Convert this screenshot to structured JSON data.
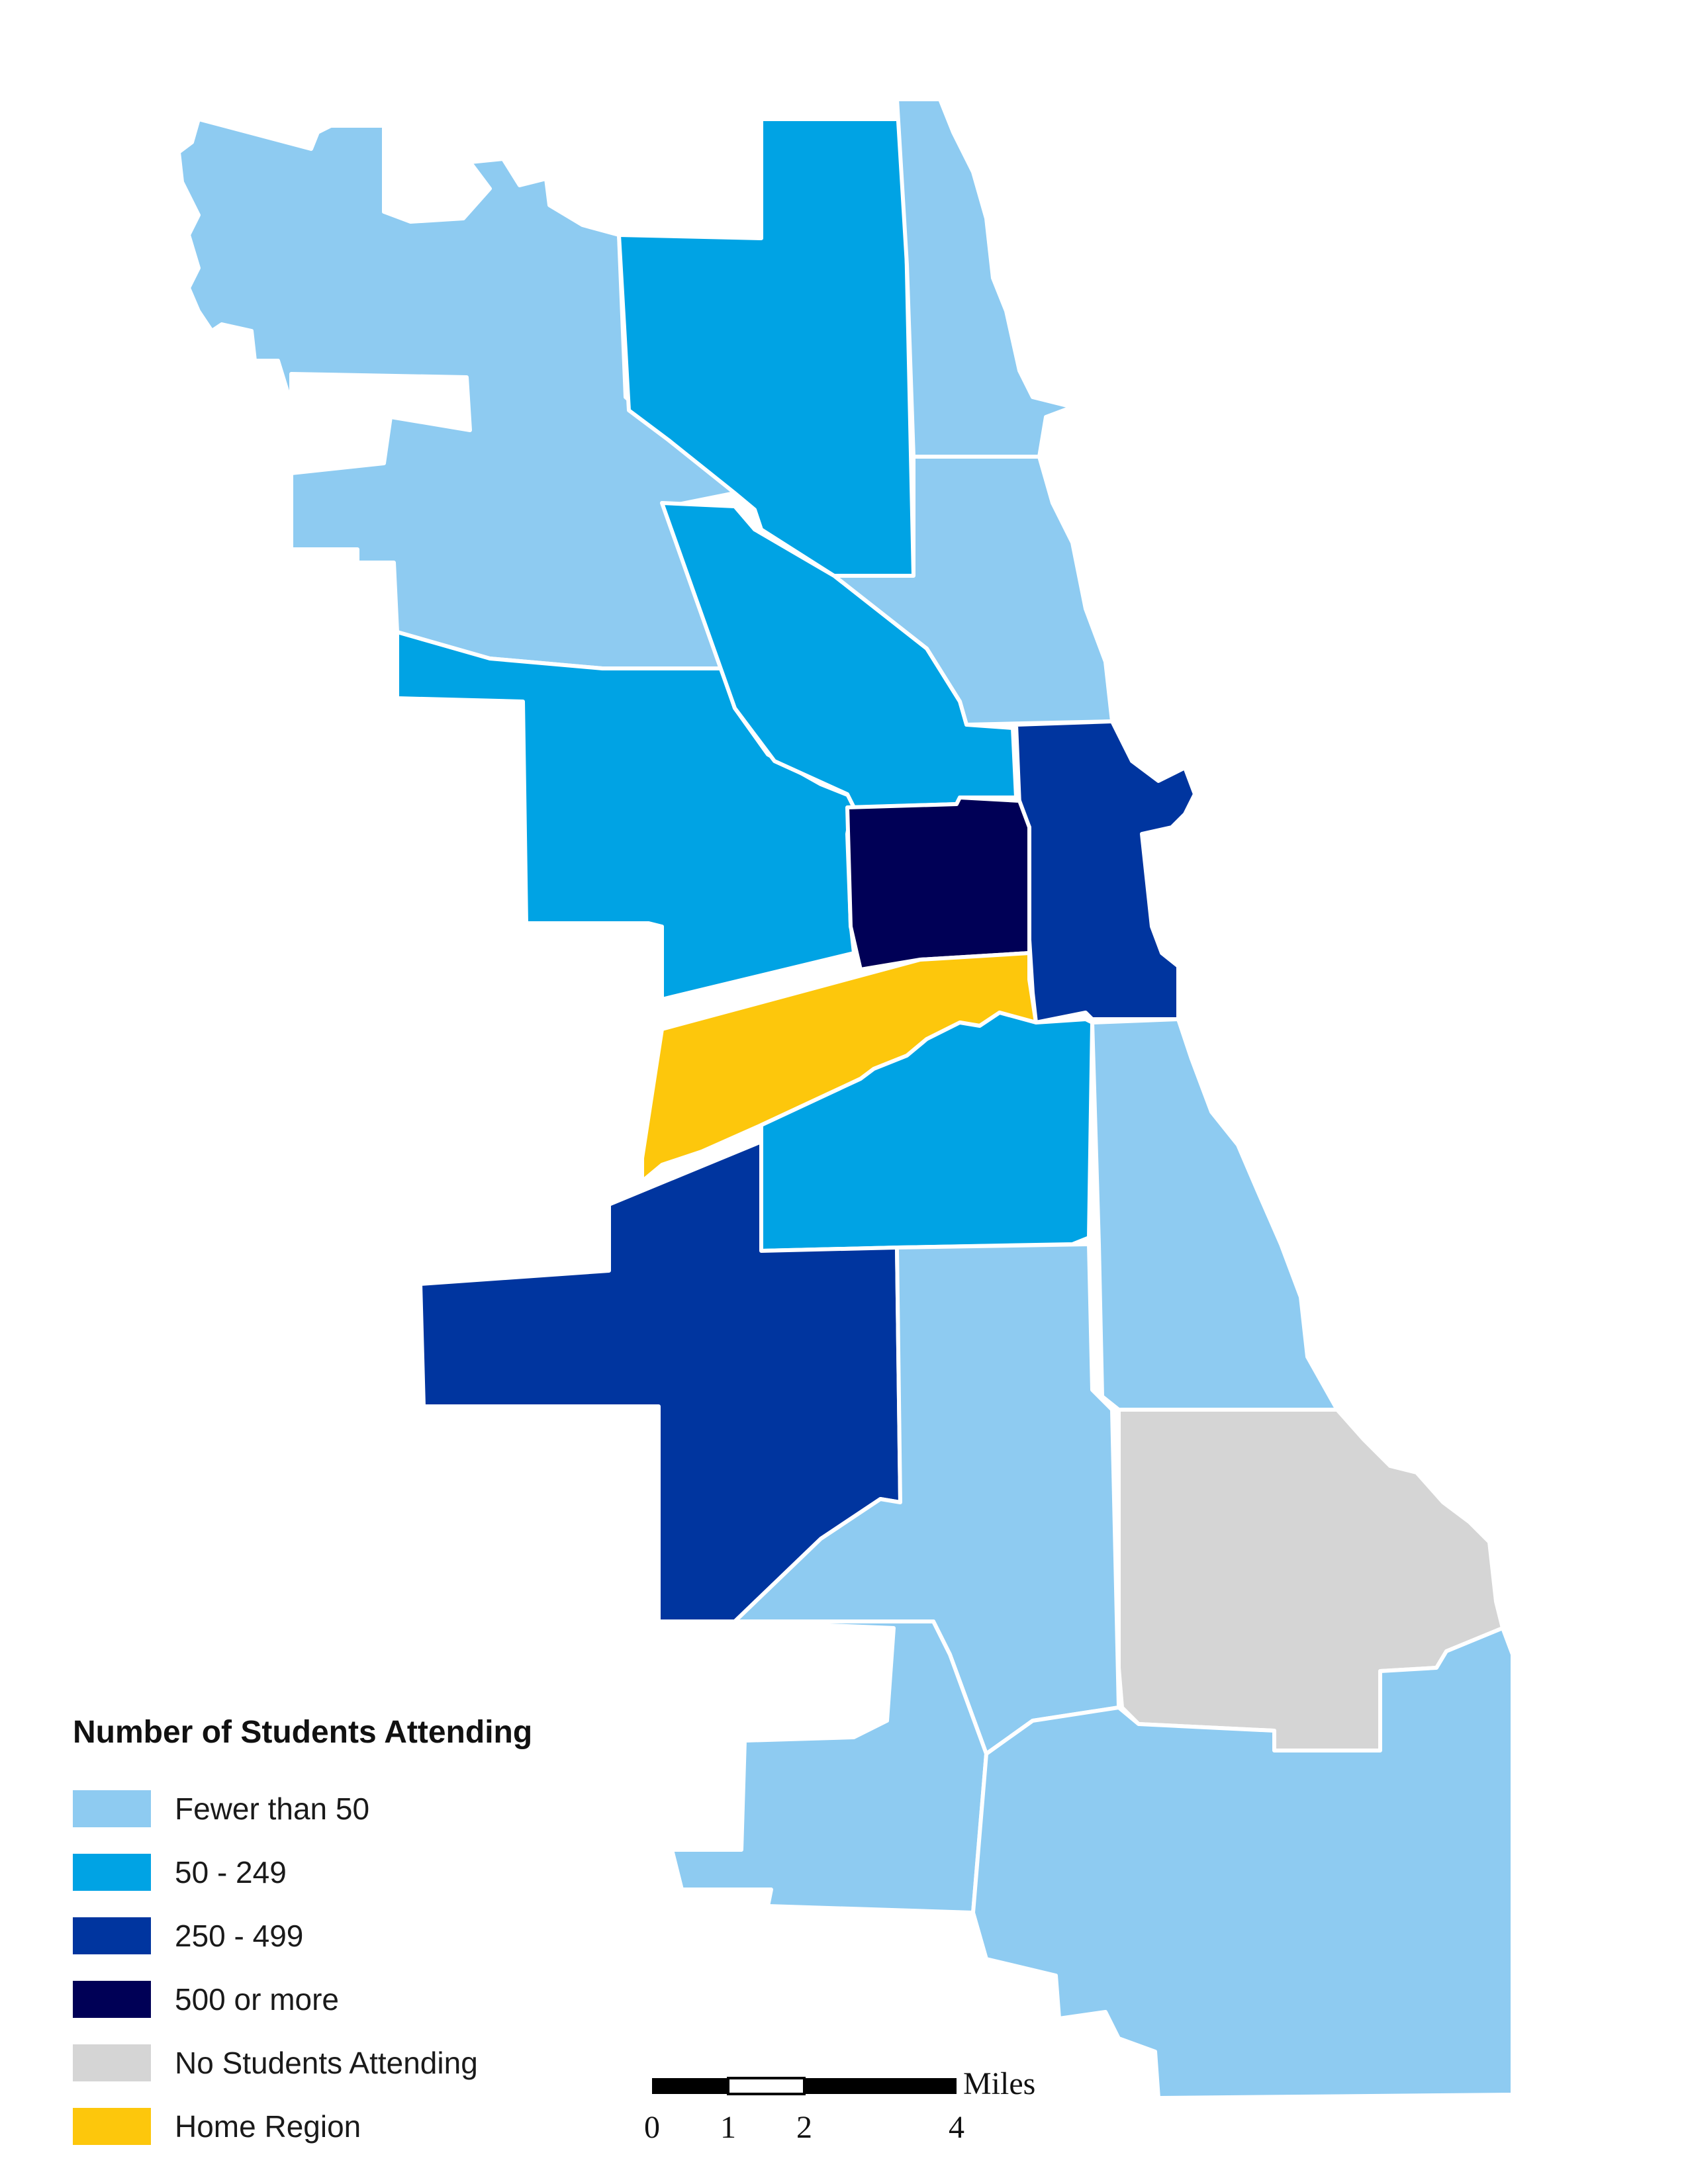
{
  "legend": {
    "title": "Number of Students Attending",
    "items": [
      {
        "label": "Fewer than 50",
        "color": "#8ecbf1"
      },
      {
        "label": "50 - 249",
        "color": "#00a3e4"
      },
      {
        "label": "250 - 499",
        "color": "#00359f"
      },
      {
        "label": "500 or more",
        "color": "#000056"
      },
      {
        "label": "No Students Attending",
        "color": "#d5d5d5"
      },
      {
        "label": "Home Region",
        "color": "#fdc70c"
      }
    ]
  },
  "scale_bar": {
    "unit": "Miles",
    "ticks": [
      "0",
      "1",
      "2",
      "4"
    ]
  },
  "regions": [
    {
      "id": "far-north-west",
      "category": "Fewer than 50"
    },
    {
      "id": "far-north",
      "category": "50 - 249"
    },
    {
      "id": "north-lakefront-upper",
      "category": "Fewer than 50"
    },
    {
      "id": "north-lakefront-lower",
      "category": "Fewer than 50"
    },
    {
      "id": "north-west",
      "category": "50 - 249"
    },
    {
      "id": "north-center",
      "category": "50 - 249"
    },
    {
      "id": "central-east",
      "category": "250 - 499"
    },
    {
      "id": "central",
      "category": "500 or more"
    },
    {
      "id": "west-side",
      "category": "Home Region"
    },
    {
      "id": "south-west-upper",
      "category": "50 - 249"
    },
    {
      "id": "south-west",
      "category": "250 - 499"
    },
    {
      "id": "south-lakefront",
      "category": "Fewer than 50"
    },
    {
      "id": "south-center",
      "category": "Fewer than 50"
    },
    {
      "id": "far-south-east",
      "category": "No Students Attending"
    },
    {
      "id": "far-south-west",
      "category": "Fewer than 50"
    },
    {
      "id": "far-south",
      "category": "Fewer than 50"
    }
  ]
}
